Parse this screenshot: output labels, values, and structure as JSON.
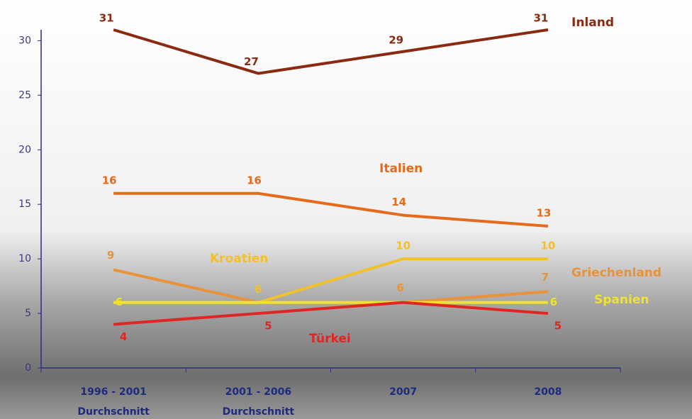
{
  "chart_data": {
    "type": "line",
    "categories": [
      "1996 - 2001",
      "2001 - 2006",
      "2007",
      "2008"
    ],
    "category_sublabels": [
      "Durchschnitt",
      "Durchschnitt",
      null,
      null
    ],
    "ylim": [
      0,
      31
    ],
    "yticks": [
      0,
      5,
      10,
      15,
      20,
      25,
      30
    ],
    "series": [
      {
        "name": "Inland",
        "color": "#8b2a12",
        "values": [
          31,
          27,
          29,
          31
        ],
        "show_labels": [
          true,
          true,
          true,
          true
        ]
      },
      {
        "name": "Italien",
        "color": "#e56a1c",
        "values": [
          16,
          16,
          14,
          13
        ],
        "show_labels": [
          true,
          true,
          true,
          true
        ]
      },
      {
        "name": "Kroatien",
        "color": "#f2c12a",
        "values": [
          6,
          6,
          10,
          10
        ],
        "show_labels": [
          false,
          true,
          true,
          true
        ]
      },
      {
        "name": "Griechenland",
        "color": "#e8923a",
        "values": [
          9,
          6,
          6,
          7
        ],
        "show_labels": [
          true,
          false,
          true,
          true
        ]
      },
      {
        "name": "Spanien",
        "color": "#f0e42a",
        "values": [
          6,
          6,
          6,
          6
        ],
        "show_labels": [
          true,
          false,
          false,
          true
        ]
      },
      {
        "name": "Türkei",
        "color": "#e02525",
        "values": [
          4,
          5,
          6,
          5
        ],
        "show_labels": [
          true,
          true,
          false,
          true
        ]
      }
    ]
  }
}
